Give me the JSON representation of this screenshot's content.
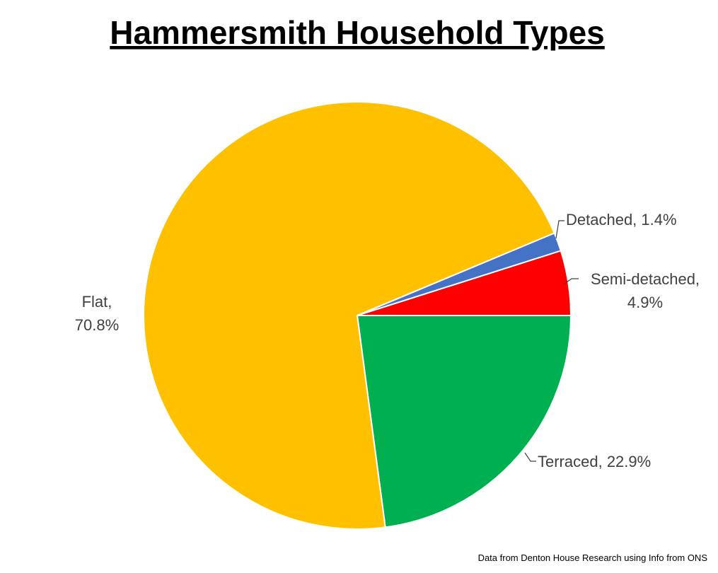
{
  "chart_data": {
    "type": "pie",
    "title": "Hammersmith Household Types",
    "values": [
      22.9,
      70.8,
      1.4,
      4.9
    ],
    "value_labels": [
      [
        "Terraced, 22.9%"
      ],
      [
        "Flat,",
        "70.8%"
      ],
      [
        "Detached, 1.4%"
      ],
      [
        "Semi-detached,",
        "4.9%"
      ]
    ],
    "colors": [
      "#00b050",
      "#ffc000",
      "#4472c4",
      "#ff0000"
    ],
    "source": "Data from Denton House Research using Info from ONS"
  }
}
